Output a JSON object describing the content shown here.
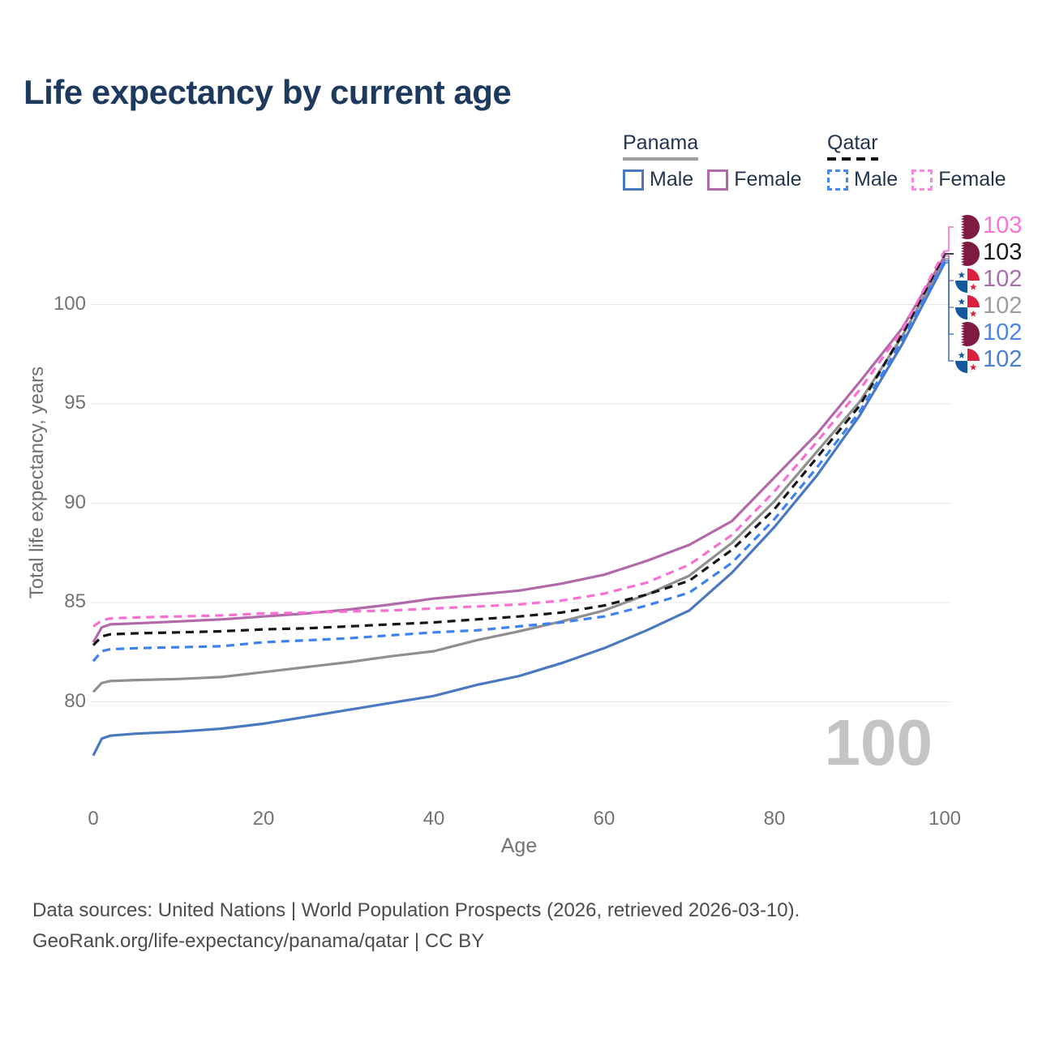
{
  "title": "Life expectancy by current age",
  "title_color": "#1d3a5e",
  "legend": {
    "text_color": "#22364e",
    "groups": [
      {
        "label": "Panama",
        "line_style": "solid",
        "underline_color": "#9e9e9e",
        "items": [
          {
            "label": "Male",
            "swatch_color": "#4a79c0",
            "swatch_style": "solid"
          },
          {
            "label": "Female",
            "swatch_color": "#b169a9",
            "swatch_style": "solid"
          }
        ]
      },
      {
        "label": "Qatar",
        "line_style": "dashed",
        "underline_color": "#141414",
        "items": [
          {
            "label": "Male",
            "swatch_color": "#4488f0",
            "swatch_style": "dashed"
          },
          {
            "label": "Female",
            "swatch_color": "#fd85dc",
            "swatch_style": "dashed"
          }
        ]
      }
    ]
  },
  "chart_data": {
    "type": "line",
    "title": "Life expectancy by current age",
    "xlabel": "Age",
    "ylabel": "Total life expectancy, years",
    "x_ticks": [
      0,
      20,
      40,
      60,
      80,
      100
    ],
    "y_ticks": [
      100,
      95,
      90,
      85,
      80
    ],
    "xlim": [
      0,
      100
    ],
    "ylim": [
      76.5,
      104
    ],
    "grid": "horizontal",
    "grid_color": "#e7e7e7",
    "tick_color": "#737373",
    "legend_position": "top-right",
    "x": [
      0,
      1,
      2,
      5,
      10,
      15,
      20,
      25,
      30,
      35,
      40,
      45,
      50,
      55,
      60,
      65,
      70,
      75,
      80,
      85,
      90,
      95,
      100
    ],
    "series": [
      {
        "id": "panama-male",
        "name": "Panama Male",
        "country": "Panama",
        "sex": "male",
        "color": "#4a79c0",
        "dashed": false,
        "flag": "panama",
        "end_label": "102",
        "end_label_color": "#4a7fd1",
        "values": [
          77.3,
          78.15,
          78.3,
          78.4,
          78.5,
          78.65,
          78.9,
          79.25,
          79.6,
          79.95,
          80.3,
          80.85,
          81.3,
          81.95,
          82.7,
          83.6,
          84.6,
          86.5,
          88.8,
          91.4,
          94.4,
          98.0,
          102.1
        ]
      },
      {
        "id": "panama-total",
        "name": "Panama",
        "country": "Panama",
        "sex": "total",
        "color": "#8f8f8f",
        "dashed": false,
        "flag": "panama",
        "end_label": "102",
        "end_label_color": "#9e9e9e",
        "values": [
          80.5,
          80.95,
          81.05,
          81.1,
          81.15,
          81.25,
          81.5,
          81.75,
          82.0,
          82.3,
          82.55,
          83.1,
          83.55,
          84.05,
          84.6,
          85.4,
          86.35,
          88.0,
          90.1,
          92.6,
          95.1,
          98.4,
          102.3
        ]
      },
      {
        "id": "panama-female",
        "name": "Panama Female",
        "country": "Panama",
        "sex": "female",
        "color": "#b169a9",
        "dashed": false,
        "flag": "panama",
        "end_label": "102",
        "end_label_color": "#a76fae",
        "values": [
          83.0,
          83.75,
          83.9,
          83.95,
          84.05,
          84.15,
          84.3,
          84.45,
          84.65,
          84.9,
          85.2,
          85.4,
          85.6,
          85.95,
          86.4,
          87.1,
          87.9,
          89.1,
          91.3,
          93.5,
          96.1,
          98.8,
          102.45
        ]
      },
      {
        "id": "qatar-male",
        "name": "Qatar Male",
        "country": "Qatar",
        "sex": "male",
        "color": "#3d82f2",
        "dashed": true,
        "flag": "qatar",
        "end_label": "102",
        "end_label_color": "#4c86e8",
        "values": [
          82.05,
          82.55,
          82.65,
          82.7,
          82.75,
          82.8,
          83.0,
          83.1,
          83.2,
          83.35,
          83.5,
          83.6,
          83.8,
          84.0,
          84.3,
          84.85,
          85.5,
          87.0,
          89.2,
          91.8,
          94.6,
          98.2,
          102.2
        ]
      },
      {
        "id": "qatar-total",
        "name": "Qatar",
        "country": "Qatar",
        "sex": "total",
        "color": "#151515",
        "dashed": true,
        "flag": "qatar",
        "end_label": "103",
        "end_label_color": "#1a1a1a",
        "values": [
          82.85,
          83.3,
          83.4,
          83.45,
          83.5,
          83.55,
          83.65,
          83.7,
          83.8,
          83.9,
          84.0,
          84.15,
          84.3,
          84.5,
          84.85,
          85.4,
          86.1,
          87.65,
          89.7,
          92.3,
          94.9,
          98.5,
          102.55
        ]
      },
      {
        "id": "qatar-female",
        "name": "Qatar Female",
        "country": "Qatar",
        "sex": "female",
        "color": "#fb6ed2",
        "dashed": true,
        "flag": "qatar",
        "end_label": "103",
        "end_label_color": "#fb74d6",
        "values": [
          83.8,
          84.1,
          84.2,
          84.25,
          84.3,
          84.35,
          84.45,
          84.5,
          84.55,
          84.6,
          84.7,
          84.8,
          84.9,
          85.1,
          85.45,
          86.0,
          86.9,
          88.4,
          90.6,
          93.1,
          95.7,
          98.7,
          102.7
        ]
      }
    ],
    "flag_colors": {
      "qatar_maroon": "#7f1b41",
      "panama_blue": "#1558a0",
      "panama_red": "#dc2140"
    }
  },
  "watermark": {
    "text": "100",
    "color": "#c4c4c4"
  },
  "footer": {
    "line1": "Data sources: United Nations | World Population Prospects (2026, retrieved 2026-03-10).",
    "line2": "GeoRank.org/life-expectancy/panama/qatar | CC BY",
    "color": "#4c4c4c"
  }
}
